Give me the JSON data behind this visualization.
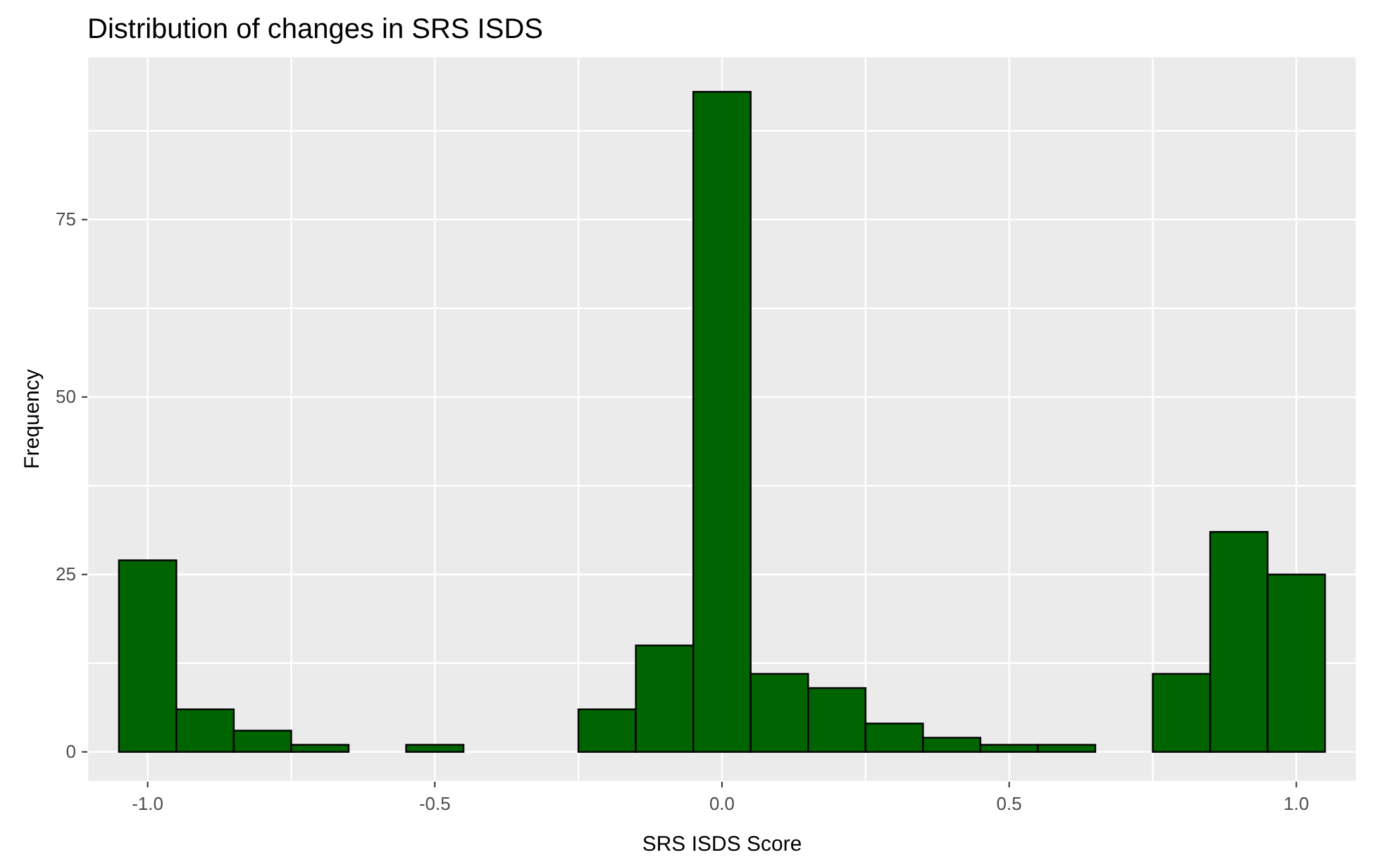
{
  "chart_data": {
    "type": "histogram",
    "title": "Distribution of changes in SRS ISDS",
    "xlabel": "SRS ISDS Score",
    "ylabel": "Frequency",
    "bins": [
      -1.05,
      -0.95,
      -0.85,
      -0.75,
      -0.65,
      -0.55,
      -0.45,
      -0.35,
      -0.25,
      -0.15,
      -0.05,
      0.05,
      0.15,
      0.25,
      0.35,
      0.45,
      0.55,
      0.65,
      0.75,
      0.85,
      0.95,
      1.05
    ],
    "values": [
      27,
      6,
      3,
      1,
      0,
      1,
      0,
      0,
      6,
      15,
      93,
      11,
      9,
      4,
      2,
      1,
      1,
      0,
      11,
      31,
      25
    ],
    "color": "#006400",
    "xlim": [
      -1.105,
      1.105
    ],
    "xticks": [
      {
        "value": -1,
        "label": "-1.0"
      },
      {
        "value": -0.75,
        "label": null
      },
      -0.5,
      {
        "value": -0.25,
        "label": null
      },
      {
        "value": 0,
        "label": "0.0"
      },
      {
        "value": 0.25,
        "label": null
      },
      0.5,
      {
        "value": 0.75,
        "label": null
      },
      {
        "value": 1,
        "label": "1.0"
      }
    ],
    "ylim": [
      -4.2,
      98
    ],
    "yticks": [
      0,
      {
        "value": 12.5,
        "label": null
      },
      25,
      {
        "value": 37.5,
        "label": null
      },
      50,
      {
        "value": 62.5,
        "label": null
      },
      75,
      {
        "value": 87.5,
        "label": null
      }
    ],
    "grid": true
  }
}
